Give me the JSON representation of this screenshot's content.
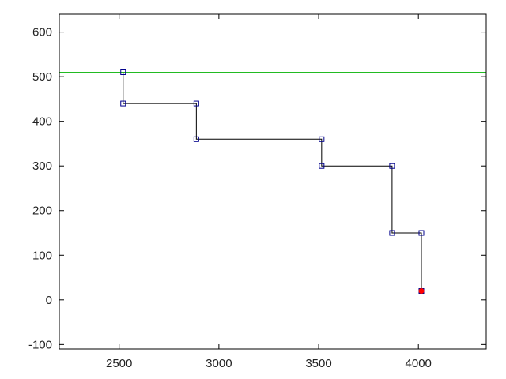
{
  "chart_data": {
    "type": "line",
    "title": "",
    "xlabel": "",
    "ylabel": "",
    "xlim": [
      2200,
      4340
    ],
    "ylim": [
      -110,
      640
    ],
    "xticks": [
      2500,
      3000,
      3500,
      4000
    ],
    "yticks": [
      -100,
      0,
      100,
      200,
      300,
      400,
      500,
      600
    ],
    "grid": false,
    "legend": "none",
    "series": [
      {
        "color": "#000000",
        "marker": "open-square",
        "marker_color": "#00008b",
        "x": [
          2520,
          2520,
          2887,
          2887,
          3515,
          3515,
          3868,
          3868,
          4015,
          4015
        ],
        "y": [
          510,
          440,
          440,
          360,
          360,
          300,
          300,
          150,
          150,
          20
        ]
      }
    ],
    "reference_lines": [
      {
        "orientation": "horizontal",
        "y": 510,
        "color": "#22bb22"
      }
    ],
    "highlight_point": {
      "x": 4015,
      "y": 20,
      "color": "#ff0000"
    }
  }
}
